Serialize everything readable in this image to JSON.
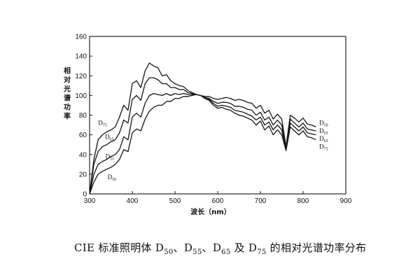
{
  "chart_data": {
    "type": "line",
    "title": "",
    "xlabel": "波长（nm）",
    "ylabel": "相对光谱功率",
    "xlim": [
      300,
      900
    ],
    "ylim": [
      0,
      160
    ],
    "xticks": [
      300,
      400,
      500,
      600,
      700,
      800,
      900
    ],
    "yticks": [
      0,
      20,
      40,
      60,
      80,
      100,
      120,
      140,
      160
    ],
    "grid": false,
    "series": [
      {
        "name": "D75",
        "x": [
          300,
          310,
          320,
          330,
          340,
          350,
          360,
          370,
          380,
          390,
          400,
          410,
          420,
          430,
          440,
          450,
          460,
          470,
          480,
          490,
          500,
          510,
          520,
          530,
          540,
          550,
          560,
          570,
          580,
          590,
          600,
          610,
          620,
          630,
          640,
          650,
          660,
          670,
          680,
          690,
          700,
          710,
          720,
          730,
          740,
          750,
          760,
          770,
          780,
          790,
          800,
          810,
          820,
          830
        ],
        "y": [
          0,
          35,
          55,
          60,
          63,
          65,
          68,
          78,
          90,
          85,
          112,
          115,
          108,
          125,
          133,
          130,
          128,
          120,
          121,
          115,
          112,
          110,
          109,
          105,
          103,
          101,
          100,
          97,
          95,
          90,
          87,
          88,
          86,
          85,
          82,
          80,
          79,
          77,
          75,
          70,
          74,
          65,
          69,
          60,
          65,
          60,
          44,
          68,
          64,
          60,
          64,
          58,
          57,
          55
        ]
      },
      {
        "name": "D65",
        "x": [
          300,
          310,
          320,
          330,
          340,
          350,
          360,
          370,
          380,
          390,
          400,
          410,
          420,
          430,
          440,
          450,
          460,
          470,
          480,
          490,
          500,
          510,
          520,
          530,
          540,
          550,
          560,
          570,
          580,
          590,
          600,
          610,
          620,
          630,
          640,
          650,
          660,
          670,
          680,
          690,
          700,
          710,
          720,
          730,
          740,
          750,
          760,
          770,
          780,
          790,
          800,
          810,
          820,
          830
        ],
        "y": [
          0,
          30,
          43,
          48,
          50,
          53,
          55,
          62,
          75,
          72,
          96,
          100,
          95,
          112,
          118,
          118,
          116,
          112,
          112,
          108,
          108,
          106,
          106,
          103,
          102,
          101,
          100,
          97,
          96,
          92,
          89,
          90,
          89,
          88,
          85,
          84,
          83,
          81,
          79,
          75,
          78,
          70,
          73,
          65,
          70,
          65,
          45,
          72,
          68,
          64,
          68,
          62,
          61,
          60
        ]
      },
      {
        "name": "D55",
        "x": [
          300,
          310,
          320,
          330,
          340,
          350,
          360,
          370,
          380,
          390,
          400,
          410,
          420,
          430,
          440,
          450,
          460,
          470,
          480,
          490,
          500,
          510,
          520,
          530,
          540,
          550,
          560,
          570,
          580,
          590,
          600,
          610,
          620,
          630,
          640,
          650,
          660,
          670,
          680,
          690,
          700,
          710,
          720,
          730,
          740,
          750,
          760,
          770,
          780,
          790,
          800,
          810,
          820,
          830
        ],
        "y": [
          0,
          20,
          30,
          33,
          35,
          38,
          40,
          45,
          58,
          55,
          78,
          82,
          78,
          92,
          100,
          102,
          101,
          100,
          102,
          100,
          102,
          101,
          102,
          101,
          101,
          101,
          100,
          98,
          97,
          94,
          92,
          93,
          93,
          92,
          89,
          89,
          88,
          86,
          85,
          80,
          83,
          75,
          78,
          70,
          75,
          70,
          46,
          76,
          72,
          68,
          72,
          66,
          65,
          64
        ]
      },
      {
        "name": "D50",
        "x": [
          300,
          310,
          320,
          330,
          340,
          350,
          360,
          370,
          380,
          390,
          400,
          410,
          420,
          430,
          440,
          450,
          460,
          470,
          480,
          490,
          500,
          510,
          520,
          530,
          540,
          550,
          560,
          570,
          580,
          590,
          600,
          610,
          620,
          630,
          640,
          650,
          660,
          670,
          680,
          690,
          700,
          710,
          720,
          730,
          740,
          750,
          760,
          770,
          780,
          790,
          800,
          810,
          820,
          830
        ],
        "y": [
          0,
          12,
          20,
          23,
          25,
          27,
          30,
          35,
          45,
          43,
          62,
          66,
          64,
          76,
          84,
          88,
          90,
          90,
          94,
          94,
          97,
          97,
          99,
          99,
          100,
          101,
          100,
          99,
          99,
          97,
          96,
          97,
          98,
          97,
          95,
          96,
          95,
          93,
          92,
          87,
          90,
          82,
          85,
          76,
          81,
          76,
          48,
          80,
          77,
          73,
          77,
          71,
          70,
          68
        ]
      }
    ],
    "annotations": [
      {
        "text": "D",
        "sub": "75",
        "for": "D75",
        "side": "left",
        "x": 320,
        "y": 70
      },
      {
        "text": "D",
        "sub": "65",
        "for": "D65",
        "side": "left",
        "x": 336,
        "y": 56
      },
      {
        "text": "D",
        "sub": "55",
        "for": "D55",
        "side": "left",
        "x": 337,
        "y": 36
      },
      {
        "text": "D",
        "sub": "50",
        "for": "D50",
        "side": "left",
        "x": 342,
        "y": 15
      },
      {
        "text": "D",
        "sub": "50",
        "for": "D50",
        "side": "right",
        "x": 838,
        "y": 70
      },
      {
        "text": "D",
        "sub": "55",
        "for": "D55",
        "side": "right",
        "x": 838,
        "y": 62
      },
      {
        "text": "D",
        "sub": "65",
        "for": "D65",
        "side": "right",
        "x": 838,
        "y": 54
      },
      {
        "text": "D",
        "sub": "75",
        "for": "D75",
        "side": "right",
        "x": 838,
        "y": 46
      }
    ]
  },
  "caption": {
    "prefix": "CIE  标准照明体  D",
    "sub1": "50",
    "sep1": "、D",
    "sub2": "55",
    "sep2": "、D",
    "sub3": "65",
    "sep3": "  及  D",
    "sub4": "75",
    "suffix": " 的相对光谱功率分布"
  }
}
